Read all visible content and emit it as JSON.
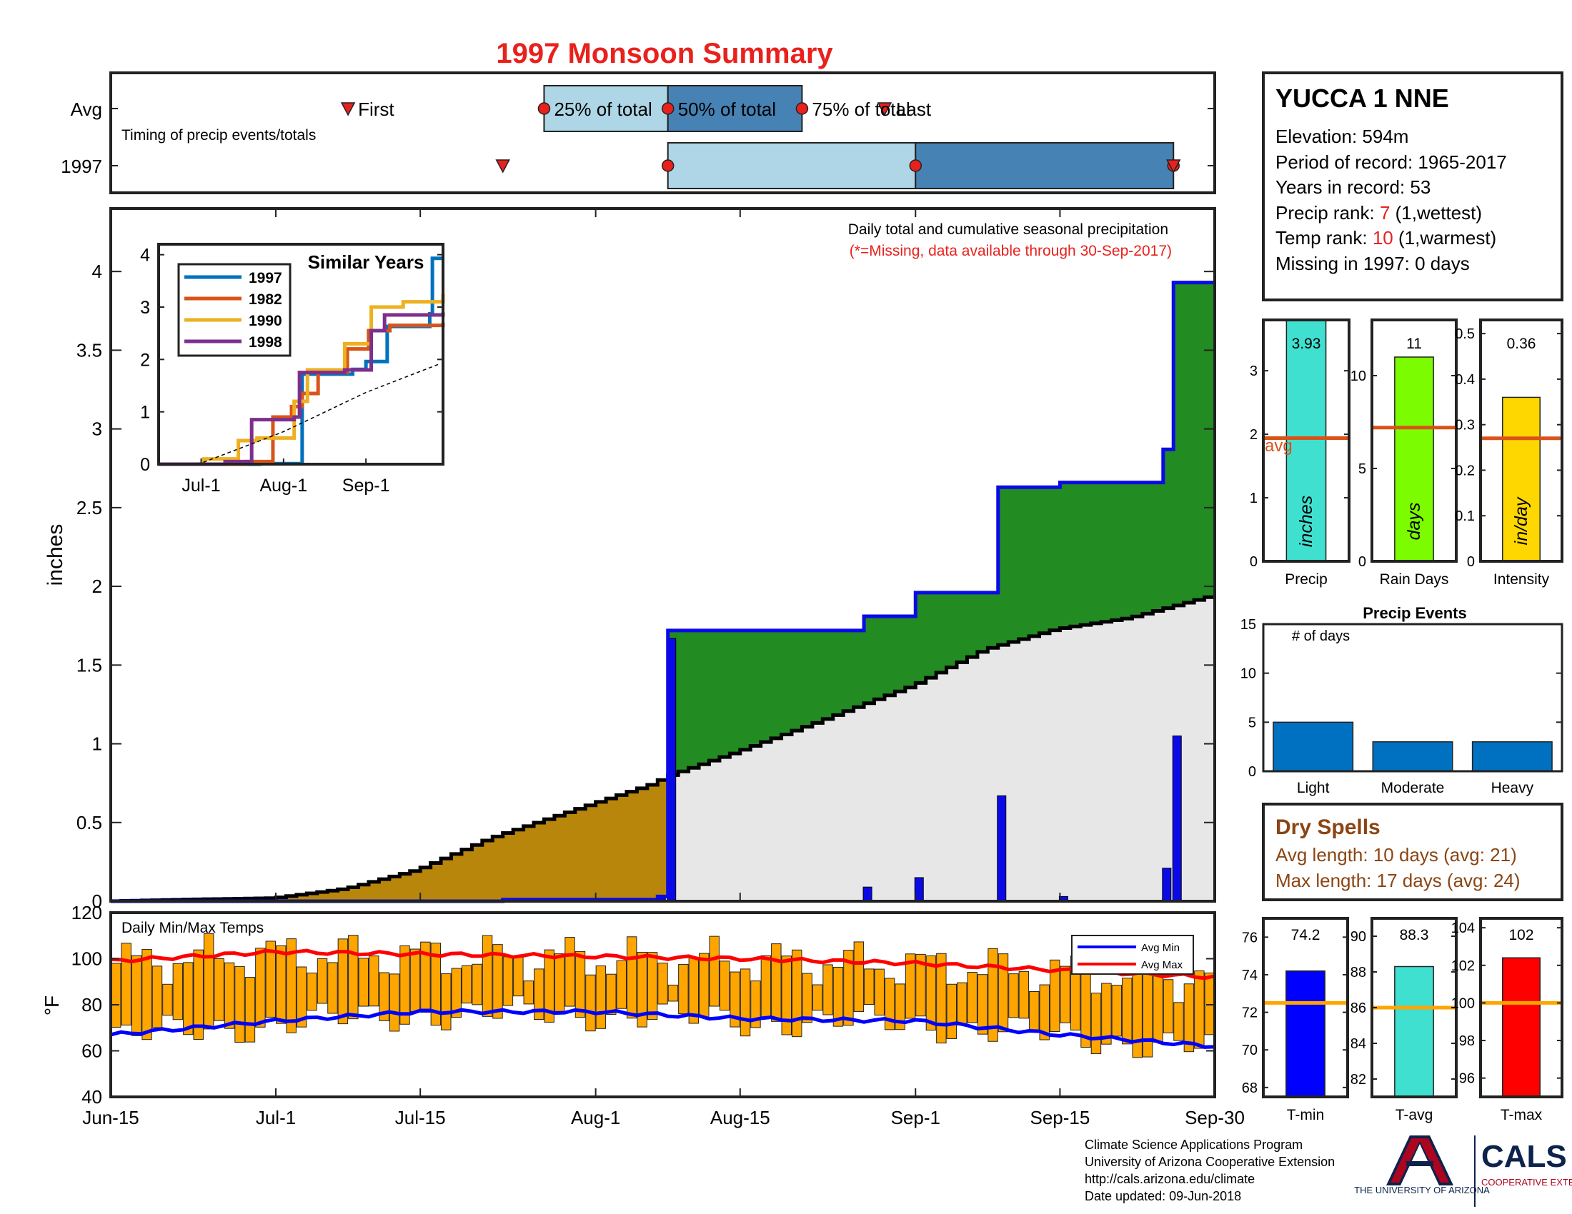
{
  "title": "1997 Monsoon Summary",
  "timing": {
    "subtitle": "Timing of precip events/totals",
    "row_labels": [
      "Avg",
      "1997"
    ],
    "marker_labels": {
      "first": "First",
      "q25": "25% of total",
      "q50": "50% of total",
      "q75": "75% of total",
      "last": "Last"
    },
    "avg": {
      "first": "Jul-8",
      "q25": "Jul-27",
      "q50": "Aug-8",
      "q75": "Aug-21",
      "last": "Aug-29"
    },
    "y1997": {
      "first": "Jul-23",
      "q25": "Aug-8",
      "q50": "Sep-1",
      "q75": "Sep-26",
      "last": "Sep-26"
    },
    "colors": {
      "lower": "#aed6e6",
      "upper": "#4682b4",
      "marker": "#e8211d"
    }
  },
  "main": {
    "note_line1": "Daily total and cumulative seasonal precipitation",
    "note_line2": "(*=Missing, data available through 30-Sep-2017)",
    "ylabel": "inches",
    "yticks": [
      "0",
      "0.5",
      "1",
      "1.5",
      "2",
      "2.5",
      "3",
      "3.5",
      "4"
    ]
  },
  "temps": {
    "title": "Daily Min/Max Temps",
    "ylabel": "°F",
    "yticks": [
      "40",
      "60",
      "80",
      "100",
      "120"
    ],
    "legend": {
      "min": "Avg Min",
      "max": "Avg Max"
    }
  },
  "xaxis": {
    "ticks": [
      "Jun-15",
      "Jul-1",
      "Jul-15",
      "Aug-1",
      "Aug-15",
      "Sep-1",
      "Sep-15",
      "Sep-30"
    ]
  },
  "inset": {
    "title": "Similar Years",
    "yticks": [
      "0",
      "1",
      "2",
      "3",
      "4"
    ],
    "xticks": [
      "Jul-1",
      "Aug-1",
      "Sep-1"
    ]
  },
  "station": {
    "name": "YUCCA 1 NNE",
    "elevation_label": "Elevation: 594m",
    "period_label": "Period of record: 1965-2017",
    "years_label": "Years in record: 53",
    "precip_rank_prefix": "Precip rank: ",
    "precip_rank": "7",
    "precip_rank_suffix": " (1,wettest)",
    "temp_rank_prefix": "Temp rank: ",
    "temp_rank": "10",
    "temp_rank_suffix": " (1,warmest)",
    "missing_label": "Missing in 1997: 0 days"
  },
  "stats": {
    "precip": {
      "label": "Precip",
      "unit": "inches",
      "value_label": "3.93",
      "avg_label": "avg",
      "yticks": [
        "0",
        "1",
        "2",
        "3"
      ]
    },
    "raindays": {
      "label": "Rain Days",
      "unit": "days",
      "value_label": "11",
      "yticks": [
        "0",
        "5",
        "10"
      ]
    },
    "intensity": {
      "label": "Intensity",
      "unit": "in/day",
      "value_label": "0.36",
      "yticks": [
        "0",
        "0.1",
        "0.2",
        "0.3",
        "0.4",
        "0.5"
      ]
    }
  },
  "events": {
    "title": "Precip Events",
    "ylabel": "# of days",
    "yticks": [
      "0",
      "5",
      "10",
      "15"
    ]
  },
  "dry_spells": {
    "title": "Dry Spells",
    "avg_line": "Avg length: 10 days (avg: 21)",
    "max_line": "Max length: 17 days (avg: 24)"
  },
  "temp_stats": {
    "tmin": {
      "label": "T-min",
      "value_label": "74.2",
      "yticks": [
        "68",
        "70",
        "72",
        "74",
        "76"
      ]
    },
    "tavg": {
      "label": "T-avg",
      "value_label": "88.3",
      "yticks": [
        "82",
        "84",
        "86",
        "88",
        "90"
      ]
    },
    "tmax": {
      "label": "T-max",
      "value_label": "102",
      "yticks": [
        "96",
        "98",
        "100",
        "102",
        "104"
      ]
    }
  },
  "footer": {
    "line1": "Climate Science Applications Program",
    "line2": "University of Arizona Cooperative Extension",
    "line3": "http://cals.arizona.edu/climate",
    "line4": " Date updated: 09-Jun-2018",
    "logo_ua": "THE UNIVERSITY OF ARIZONA",
    "logo_cals": "CALS",
    "logo_coop": "COOPERATIVE EXTENSION"
  },
  "chart_data": [
    {
      "type": "area",
      "name": "cumulative-precipitation",
      "x_start": "Jun-15",
      "x_end": "Sep-30",
      "ylim": [
        0,
        4.4
      ],
      "cumulative_1997": {
        "x": [
          "Jul-23",
          "Aug-7",
          "Aug-8",
          "Aug-27",
          "Sep-1",
          "Sep-9",
          "Sep-15",
          "Sep-25",
          "Sep-26"
        ],
        "values": [
          0.01,
          0.03,
          1.72,
          1.81,
          1.96,
          2.63,
          2.66,
          2.87,
          3.93
        ]
      },
      "cumulative_avg": {
        "x": [
          "Jun-15",
          "Jun-22",
          "Jul-1",
          "Jul-8",
          "Jul-15",
          "Jul-22",
          "Aug-1",
          "Aug-7",
          "Aug-8",
          "Aug-15",
          "Aug-22",
          "Sep-1",
          "Sep-8",
          "Sep-15",
          "Sep-22",
          "Sep-30"
        ],
        "values": [
          0.0,
          0.01,
          0.02,
          0.08,
          0.2,
          0.4,
          0.62,
          0.75,
          0.79,
          0.95,
          1.12,
          1.37,
          1.6,
          1.73,
          1.8,
          1.94
        ]
      },
      "daily_1997": {
        "x": [
          "Jul-23",
          "Aug-1",
          "Aug-7",
          "Aug-8",
          "Aug-27",
          "Sep-1",
          "Sep-9",
          "Sep-15",
          "Sep-25",
          "Sep-26"
        ],
        "values": [
          0.01,
          0.01,
          0.02,
          1.67,
          0.09,
          0.15,
          0.67,
          0.03,
          0.21,
          1.05
        ]
      },
      "colors": {
        "below_avg": "#b8860b",
        "above_avg": "#228b22",
        "avg_fill": "#e8e7e7",
        "line_1997": "#0a0ae8",
        "line_avg": "#000000"
      }
    },
    {
      "type": "line",
      "name": "similar-years",
      "x_start": "Jun-15",
      "x_end": "Sep-30",
      "ylim": [
        0,
        4.2
      ],
      "series": [
        {
          "name": "1997",
          "color": "#0072bd",
          "x": [
            "Jun-15",
            "Jul-23",
            "Aug-8",
            "Aug-27",
            "Sep-1",
            "Sep-9",
            "Sep-25",
            "Sep-26",
            "Sep-30"
          ],
          "values": [
            0,
            0.01,
            1.72,
            1.81,
            1.96,
            2.63,
            2.87,
            3.93,
            3.93
          ]
        },
        {
          "name": "1982",
          "color": "#d95319",
          "x": [
            "Jun-15",
            "Jul-18",
            "Jul-28",
            "Aug-4",
            "Aug-8",
            "Aug-14",
            "Aug-25",
            "Sep-2",
            "Sep-10",
            "Sep-30"
          ],
          "values": [
            0,
            0.05,
            0.9,
            1.1,
            1.35,
            1.75,
            2.2,
            2.55,
            2.65,
            2.7
          ]
        },
        {
          "name": "1990",
          "color": "#edb120",
          "x": [
            "Jun-15",
            "Jul-2",
            "Jul-15",
            "Jul-22",
            "Aug-5",
            "Aug-10",
            "Aug-24",
            "Sep-3",
            "Sep-15",
            "Sep-30"
          ],
          "values": [
            0,
            0.1,
            0.45,
            0.5,
            1.2,
            1.8,
            2.3,
            3.0,
            3.1,
            3.25
          ]
        },
        {
          "name": "1998",
          "color": "#7e2f8e",
          "x": [
            "Jun-15",
            "Jul-10",
            "Jul-20",
            "Aug-5",
            "Aug-7",
            "Aug-24",
            "Sep-3",
            "Sep-8",
            "Sep-30"
          ],
          "values": [
            0,
            0.05,
            0.85,
            0.9,
            1.75,
            1.8,
            2.55,
            2.85,
            2.9
          ]
        },
        {
          "name": "avg",
          "color": "#000000",
          "x": [
            "Jun-15",
            "Jul-1",
            "Aug-1",
            "Sep-1",
            "Sep-30"
          ],
          "values": [
            0,
            0.02,
            0.62,
            1.37,
            1.94
          ]
        }
      ]
    },
    {
      "type": "bar",
      "name": "daily-min-max-temps",
      "ylim": [
        40,
        120
      ],
      "x_start": "Jun-15",
      "x_end": "Sep-30",
      "series": [
        {
          "name": "Avg Min",
          "color": "#0000ff",
          "x": [
            "Jun-15",
            "Jul-1",
            "Jul-15",
            "Aug-1",
            "Aug-15",
            "Sep-1",
            "Sep-15",
            "Sep-30"
          ],
          "values": [
            67,
            73,
            77,
            77,
            74,
            73,
            67,
            62
          ]
        },
        {
          "name": "Avg Max",
          "color": "#ff0000",
          "x": [
            "Jun-15",
            "Jul-1",
            "Jul-15",
            "Aug-1",
            "Aug-15",
            "Sep-1",
            "Sep-15",
            "Sep-30"
          ],
          "values": [
            99,
            103,
            102,
            101,
            100,
            98,
            95,
            92
          ]
        }
      ],
      "bar_color": "#ffa500"
    },
    {
      "type": "bar",
      "name": "season-precip-stats",
      "categories": [
        "Precip",
        "Rain Days",
        "Intensity"
      ],
      "values": [
        3.93,
        11,
        0.36
      ],
      "averages": [
        1.94,
        7.2,
        0.27
      ],
      "ylims": [
        [
          0,
          3.8
        ],
        [
          0,
          13
        ],
        [
          0,
          0.53
        ]
      ],
      "colors": [
        "#40e0d0",
        "#7cfc00",
        "#ffd700"
      ]
    },
    {
      "type": "bar",
      "name": "precip-events",
      "categories": [
        "Light",
        "Moderate",
        "Heavy"
      ],
      "values": [
        5,
        3,
        3
      ],
      "ylim": [
        0,
        15
      ],
      "color": "#0070c0"
    },
    {
      "type": "bar",
      "name": "temperature-stats",
      "categories": [
        "T-min",
        "T-avg",
        "T-max"
      ],
      "values": [
        74.2,
        88.3,
        102.4
      ],
      "averages": [
        72.5,
        86.0,
        100.0
      ],
      "ylims": [
        [
          67.5,
          77
        ],
        [
          81,
          91
        ],
        [
          95,
          104.5
        ]
      ],
      "colors": [
        "#0000ff",
        "#40e0d0",
        "#ff0000"
      ]
    }
  ]
}
